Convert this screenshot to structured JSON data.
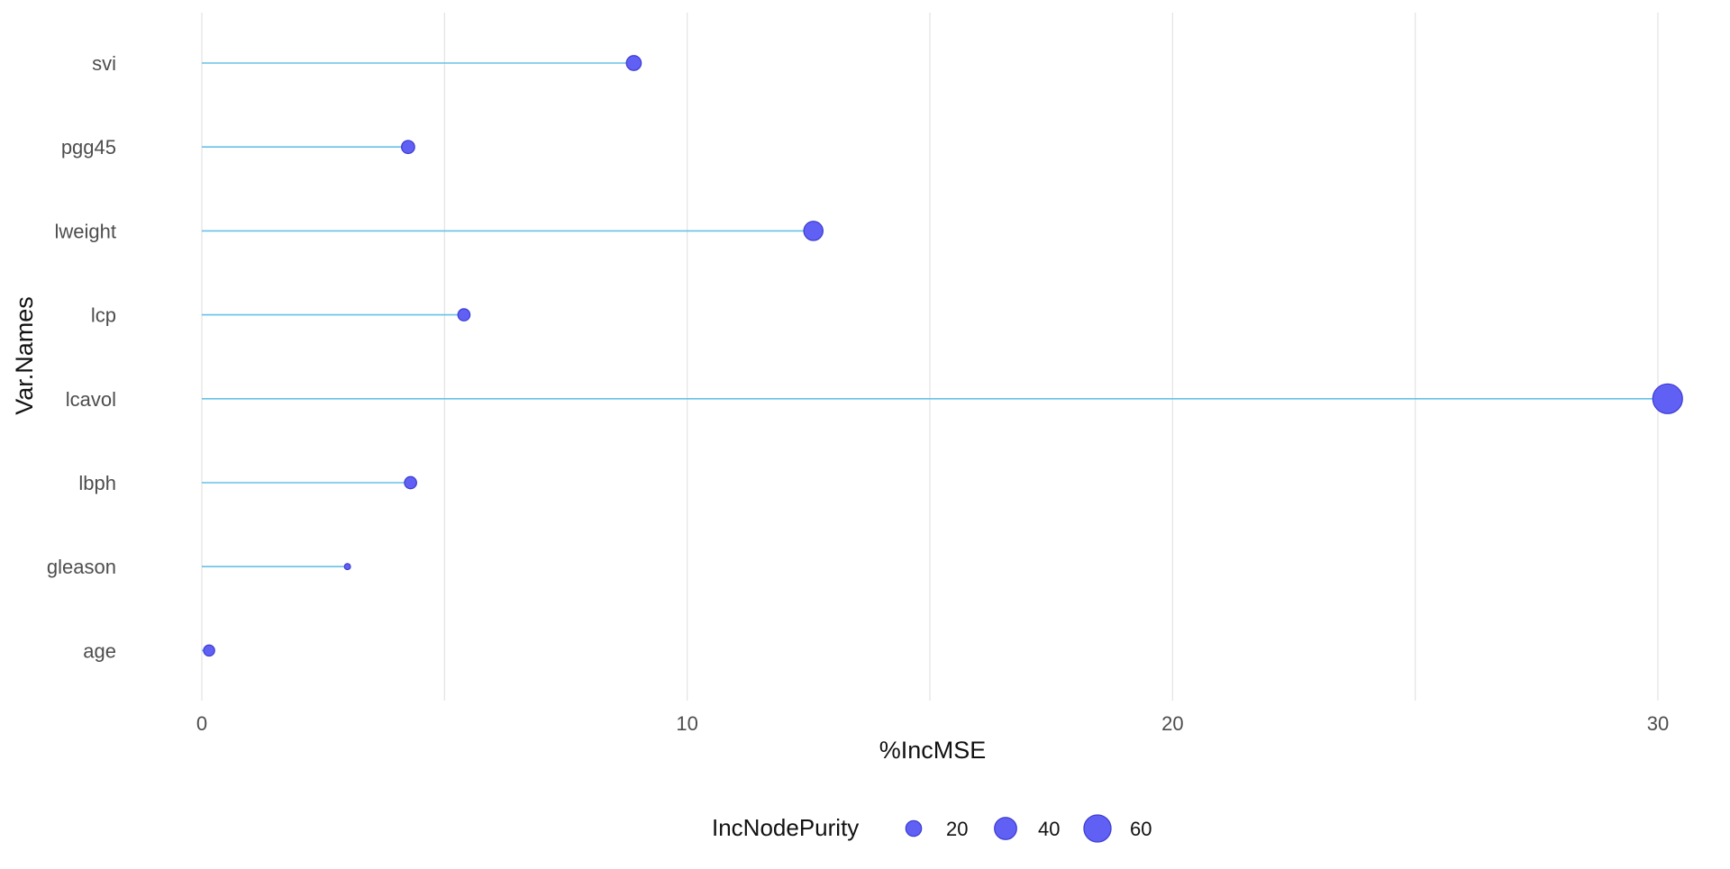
{
  "chart_data": {
    "type": "lollipop",
    "xlabel": "%IncMSE",
    "ylabel": "Var.Names",
    "xlim": [
      0,
      30.5
    ],
    "x_ticks": [
      0,
      10,
      20,
      30
    ],
    "x_tick_labels": [
      "0",
      "10",
      "20",
      "30"
    ],
    "grid": true,
    "legend_position": "bottom",
    "categories": [
      "svi",
      "pgg45",
      "lweight",
      "lcp",
      "lcavol",
      "lbph",
      "gleason",
      "age"
    ],
    "series": [
      {
        "values": [
          8.9,
          4.25,
          12.6,
          5.4,
          30.2,
          4.3,
          3.0,
          0.15
        ],
        "size_values": [
          18,
          14,
          30,
          12,
          72,
          12,
          3,
          10
        ]
      }
    ],
    "size_legend": {
      "title": "IncNodePurity",
      "items": [
        {
          "value": 20,
          "label": "20"
        },
        {
          "value": 40,
          "label": "40"
        },
        {
          "value": 60,
          "label": "60"
        }
      ]
    },
    "colors": {
      "point_fill": "#6060f5",
      "point_stroke": "#3b3bd0",
      "stem": "#67c1e6",
      "grid": "#e3e3e3",
      "axis_text": "#4d4d4d",
      "title_text": "#111111"
    }
  }
}
